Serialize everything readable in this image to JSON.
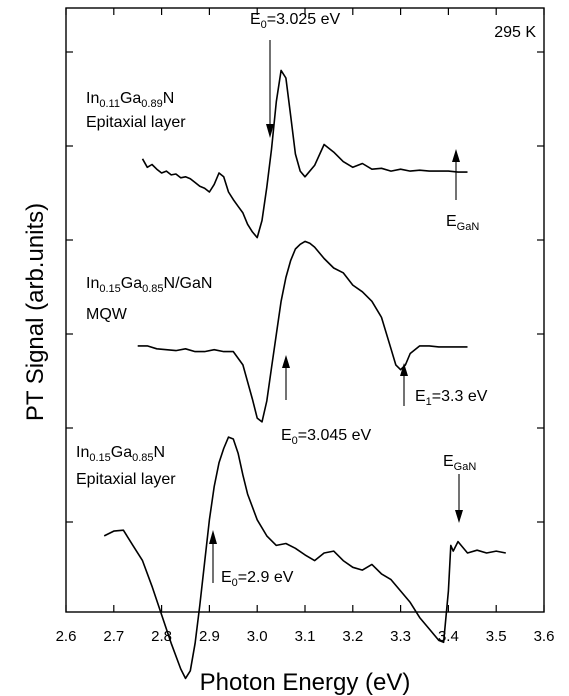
{
  "chart_data": {
    "type": "line",
    "title": "",
    "xlabel": "Photon Energy (eV)",
    "ylabel": "PT Signal (arb.units)",
    "xlim": [
      2.6,
      3.6
    ],
    "xticks": [
      "2.6",
      "2.7",
      "2.8",
      "2.9",
      "3.0",
      "3.1",
      "3.2",
      "3.3",
      "3.4",
      "3.5",
      "3.6"
    ],
    "y_units": "arbitrary (stacked, offset traces)",
    "temperature_label": "295 K",
    "series": [
      {
        "name": "In0.11Ga0.89N Epitaxial layer",
        "label_parts": {
          "el1": "In",
          "sub1": "0.11",
          "el2": "Ga",
          "sub2": "0.89",
          "el3": "N",
          "line2": "Epitaxial layer"
        },
        "x": [
          2.76,
          2.77,
          2.78,
          2.79,
          2.8,
          2.81,
          2.82,
          2.83,
          2.84,
          2.85,
          2.86,
          2.87,
          2.88,
          2.89,
          2.9,
          2.91,
          2.92,
          2.93,
          2.94,
          2.95,
          2.96,
          2.97,
          2.98,
          2.99,
          3.0,
          3.01,
          3.02,
          3.03,
          3.04,
          3.05,
          3.06,
          3.07,
          3.08,
          3.09,
          3.1,
          3.12,
          3.14,
          3.16,
          3.18,
          3.2,
          3.22,
          3.24,
          3.26,
          3.28,
          3.3,
          3.32,
          3.34,
          3.36,
          3.38,
          3.4,
          3.42,
          3.44
        ],
        "y": [
          5.95,
          5.86,
          5.89,
          5.84,
          5.8,
          5.82,
          5.78,
          5.79,
          5.75,
          5.76,
          5.74,
          5.7,
          5.66,
          5.64,
          5.6,
          5.68,
          5.8,
          5.76,
          5.6,
          5.52,
          5.45,
          5.38,
          5.26,
          5.18,
          5.12,
          5.3,
          5.65,
          6.05,
          6.55,
          6.88,
          6.8,
          6.4,
          6.0,
          5.82,
          5.76,
          5.88,
          6.1,
          6.02,
          5.92,
          5.86,
          5.9,
          5.84,
          5.85,
          5.82,
          5.84,
          5.82,
          5.83,
          5.82,
          5.82,
          5.82,
          5.81,
          5.81
        ]
      },
      {
        "name": "In0.15Ga0.85N/GaN MQW",
        "label_parts": {
          "el1": "In",
          "sub1": "0.15",
          "el2": "Ga",
          "sub2": "0.85",
          "el3": "N/GaN",
          "line2": "MQW"
        },
        "x": [
          2.75,
          2.77,
          2.79,
          2.81,
          2.83,
          2.85,
          2.87,
          2.89,
          2.91,
          2.93,
          2.95,
          2.97,
          2.99,
          3.0,
          3.01,
          3.02,
          3.03,
          3.04,
          3.05,
          3.06,
          3.07,
          3.08,
          3.09,
          3.1,
          3.11,
          3.12,
          3.14,
          3.16,
          3.18,
          3.2,
          3.22,
          3.24,
          3.26,
          3.28,
          3.29,
          3.3,
          3.31,
          3.32,
          3.34,
          3.36,
          3.38,
          3.4,
          3.44
        ],
        "y": [
          3.98,
          3.98,
          3.95,
          3.94,
          3.93,
          3.95,
          3.92,
          3.92,
          3.94,
          3.92,
          3.92,
          3.78,
          3.42,
          3.22,
          3.18,
          3.4,
          3.75,
          4.1,
          4.45,
          4.7,
          4.88,
          5.0,
          5.05,
          5.08,
          5.06,
          5.02,
          4.9,
          4.8,
          4.75,
          4.62,
          4.55,
          4.45,
          4.28,
          3.95,
          3.78,
          3.73,
          3.78,
          3.9,
          3.98,
          3.98,
          3.97,
          3.97,
          3.97
        ]
      },
      {
        "name": "In0.15Ga0.85N Epitaxial layer",
        "label_parts": {
          "el1": "In",
          "sub1": "0.15",
          "el2": "Ga",
          "sub2": "0.85",
          "el3": "N",
          "line2": "Epitaxial layer"
        },
        "x": [
          2.68,
          2.7,
          2.72,
          2.74,
          2.76,
          2.78,
          2.8,
          2.82,
          2.84,
          2.85,
          2.86,
          2.87,
          2.88,
          2.89,
          2.9,
          2.91,
          2.92,
          2.93,
          2.94,
          2.95,
          2.96,
          2.97,
          2.98,
          3.0,
          3.02,
          3.04,
          3.06,
          3.08,
          3.1,
          3.12,
          3.14,
          3.16,
          3.18,
          3.2,
          3.22,
          3.24,
          3.26,
          3.28,
          3.3,
          3.32,
          3.34,
          3.36,
          3.38,
          3.39,
          3.4,
          3.405,
          3.41,
          3.42,
          3.44,
          3.46,
          3.48,
          3.5,
          3.52
        ],
        "y": [
          1.98,
          2.03,
          2.04,
          1.88,
          1.72,
          1.45,
          1.15,
          0.85,
          0.58,
          0.48,
          0.56,
          0.85,
          1.25,
          1.7,
          2.15,
          2.5,
          2.75,
          2.9,
          3.02,
          3.0,
          2.85,
          2.62,
          2.42,
          2.15,
          1.98,
          1.88,
          1.9,
          1.85,
          1.78,
          1.72,
          1.8,
          1.82,
          1.72,
          1.65,
          1.62,
          1.68,
          1.58,
          1.52,
          1.4,
          1.28,
          1.12,
          1.0,
          0.88,
          0.86,
          1.4,
          1.88,
          1.82,
          1.92,
          1.8,
          1.83,
          1.8,
          1.82,
          1.8
        ]
      }
    ],
    "annotations": {
      "top_e0": {
        "prefix": "E",
        "sub": "0",
        "suffix": "=3.025 eV",
        "x": 3.025
      },
      "top_egan": {
        "prefix": "E",
        "sub": "GaN",
        "suffix": "",
        "x": 3.41
      },
      "mid_e0": {
        "prefix": "E",
        "sub": "0",
        "suffix": "=3.045 eV",
        "x": 3.045
      },
      "mid_e1": {
        "prefix": "E",
        "sub": "1",
        "suffix": "=3.3 eV",
        "x": 3.3
      },
      "bot_e0": {
        "prefix": "E",
        "sub": "0",
        "suffix": "=2.9 eV",
        "x": 2.9
      },
      "bot_egan": {
        "prefix": "E",
        "sub": "GaN",
        "suffix": "",
        "x": 3.41
      }
    }
  }
}
